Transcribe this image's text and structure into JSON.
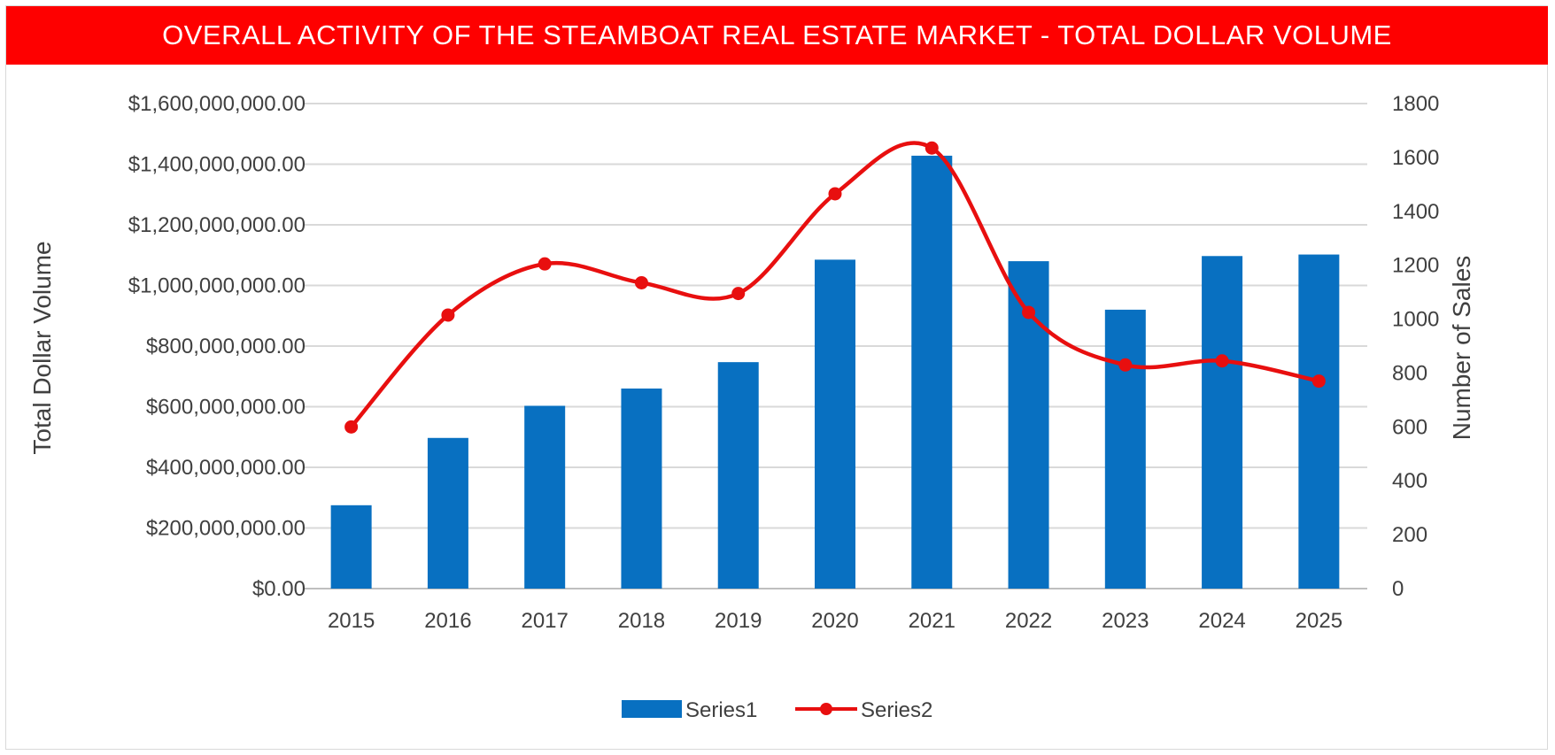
{
  "chart_data": {
    "type": "bar+line",
    "title": "OVERALL ACTIVITY OF THE STEAMBOAT REAL ESTATE MARKET - TOTAL DOLLAR VOLUME",
    "categories": [
      "2015",
      "2016",
      "2017",
      "2018",
      "2019",
      "2020",
      "2021",
      "2022",
      "2023",
      "2024",
      "2025"
    ],
    "series": [
      {
        "name": "Series1",
        "type": "bar",
        "axis": "left",
        "values": [
          275000000,
          497000000,
          603000000,
          660000000,
          747000000,
          1085000000,
          1428000000,
          1080000000,
          920000000,
          1097000000,
          1102000000
        ]
      },
      {
        "name": "Series2",
        "type": "line",
        "axis": "right",
        "values": [
          600,
          1015,
          1205,
          1135,
          1095,
          1465,
          1635,
          1025,
          830,
          845,
          770
        ]
      }
    ],
    "ylabel": "Total Dollar Volume",
    "y2label": "Number of Sales",
    "ylim": [
      0,
      1600000000
    ],
    "y2lim": [
      0,
      1800
    ],
    "yticks": [
      "$0.00",
      "$200,000,000.00",
      "$400,000,000.00",
      "$600,000,000.00",
      "$800,000,000.00",
      "$1,000,000,000.00",
      "$1,200,000,000.00",
      "$1,400,000,000.00",
      "$1,600,000,000.00"
    ],
    "y2ticks": [
      "0",
      "200",
      "400",
      "600",
      "800",
      "1000",
      "1200",
      "1400",
      "1600",
      "1800"
    ],
    "grid": true,
    "legend_position": "bottom",
    "colors": {
      "bar": "#0870c1",
      "line": "#e80f0f",
      "banner": "#fe0000"
    }
  }
}
